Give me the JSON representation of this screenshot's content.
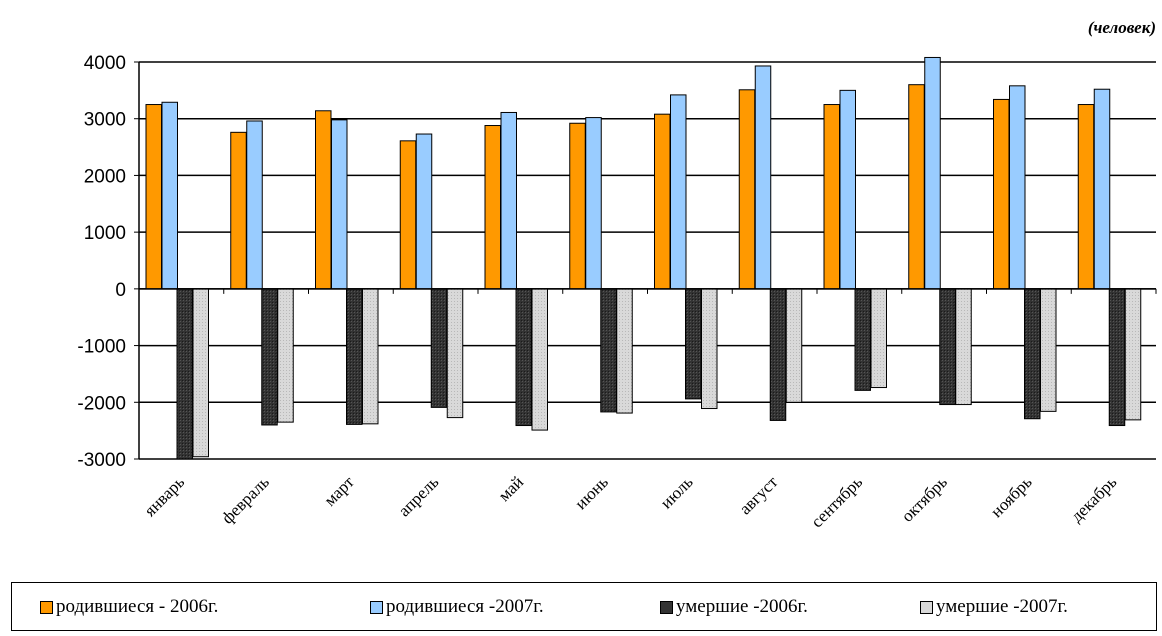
{
  "unit_label": "(человек)",
  "colors": {
    "born_2006": "#ff9900",
    "born_2007": "#99ccff",
    "died_2006": "#333333",
    "died_2007": "#d9d9d9"
  },
  "chart_data": {
    "type": "bar",
    "unit": "(человек)",
    "categories": [
      "январь",
      "февраль",
      "март",
      "апрель",
      "май",
      "июнь",
      "июль",
      "август",
      "сентябрь",
      "октябрь",
      "ноябрь",
      "декабрь"
    ],
    "series": [
      {
        "name": "родившиеся - 2006г.",
        "values": [
          3250,
          2760,
          3140,
          2610,
          2880,
          2920,
          3080,
          3510,
          3250,
          3600,
          3340,
          3250
        ]
      },
      {
        "name": "родившиеся -2007г.",
        "values": [
          3290,
          2960,
          2980,
          2730,
          3110,
          3020,
          3420,
          3930,
          3500,
          4080,
          3580,
          3520
        ]
      },
      {
        "name": "умершие -2006г.",
        "values": [
          -3000,
          -2400,
          -2390,
          -2090,
          -2410,
          -2170,
          -1940,
          -2320,
          -1790,
          -2040,
          -2290,
          -2410
        ]
      },
      {
        "name": "умершие -2007г.",
        "values": [
          -2960,
          -2350,
          -2380,
          -2270,
          -2490,
          -2190,
          -2110,
          -2000,
          -1740,
          -2040,
          -2160,
          -2310
        ]
      }
    ],
    "yticks": [
      "4000",
      "3000",
      "2000",
      "1000",
      "0",
      "-1000",
      "-2000",
      "-3000"
    ],
    "ylim": [
      -3000,
      4000
    ],
    "grid": true,
    "legend_position": "bottom"
  },
  "legend": [
    {
      "label": "родившиеся - 2006г.",
      "color": "#ff9900"
    },
    {
      "label": "родившиеся -2007г.",
      "color": "#99ccff"
    },
    {
      "label": "умершие -2006г.",
      "color": "#333333"
    },
    {
      "label": "умершие -2007г.",
      "color": "#d9d9d9"
    }
  ]
}
